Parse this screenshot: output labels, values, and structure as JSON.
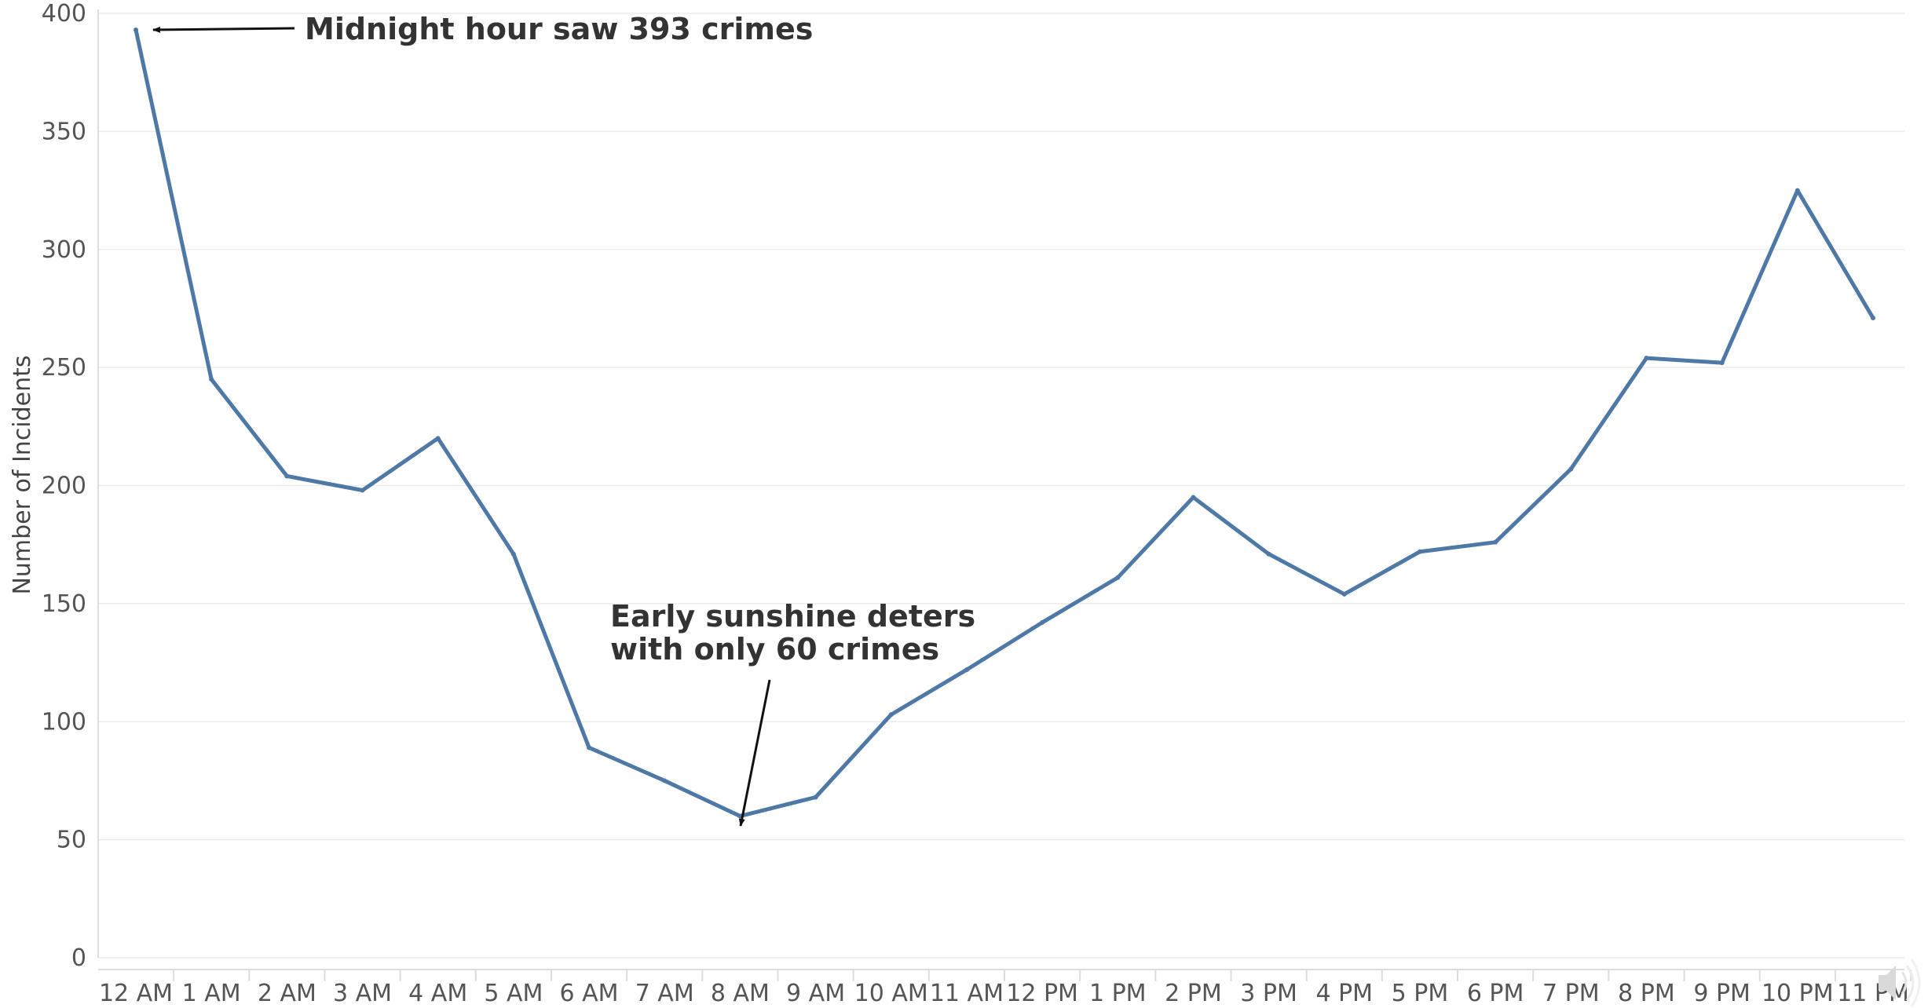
{
  "chart_data": {
    "type": "line",
    "title": "",
    "xlabel": "",
    "ylabel": "Number of Incidents",
    "ylim": [
      0,
      400
    ],
    "yticks": [
      0,
      50,
      100,
      150,
      200,
      250,
      300,
      350,
      400
    ],
    "grid": true,
    "categories": [
      "12 AM",
      "1 AM",
      "2 AM",
      "3 AM",
      "4 AM",
      "5 AM",
      "6 AM",
      "7 AM",
      "8 AM",
      "9 AM",
      "10 AM",
      "11 AM",
      "12 PM",
      "1 PM",
      "2 PM",
      "3 PM",
      "4 PM",
      "5 PM",
      "6 PM",
      "7 PM",
      "8 PM",
      "9 PM",
      "10 PM",
      "11 PM"
    ],
    "series": [
      {
        "values": [
          393,
          245,
          204,
          198,
          220,
          171,
          89,
          75,
          60,
          68,
          103,
          122,
          142,
          161,
          195,
          171,
          154,
          172,
          176,
          207,
          254,
          252,
          325,
          271
        ],
        "color": "#4e79a7"
      }
    ],
    "annotations": [
      {
        "lines": [
          "Midnight hour saw 393 crimes"
        ],
        "target_category": "12 AM",
        "target_value": 393
      },
      {
        "lines": [
          "Early sunshine deters",
          "with only 60 crimes"
        ],
        "target_category": "8 AM",
        "target_value": 60
      }
    ]
  },
  "speaker_icon": "speaker-icon"
}
